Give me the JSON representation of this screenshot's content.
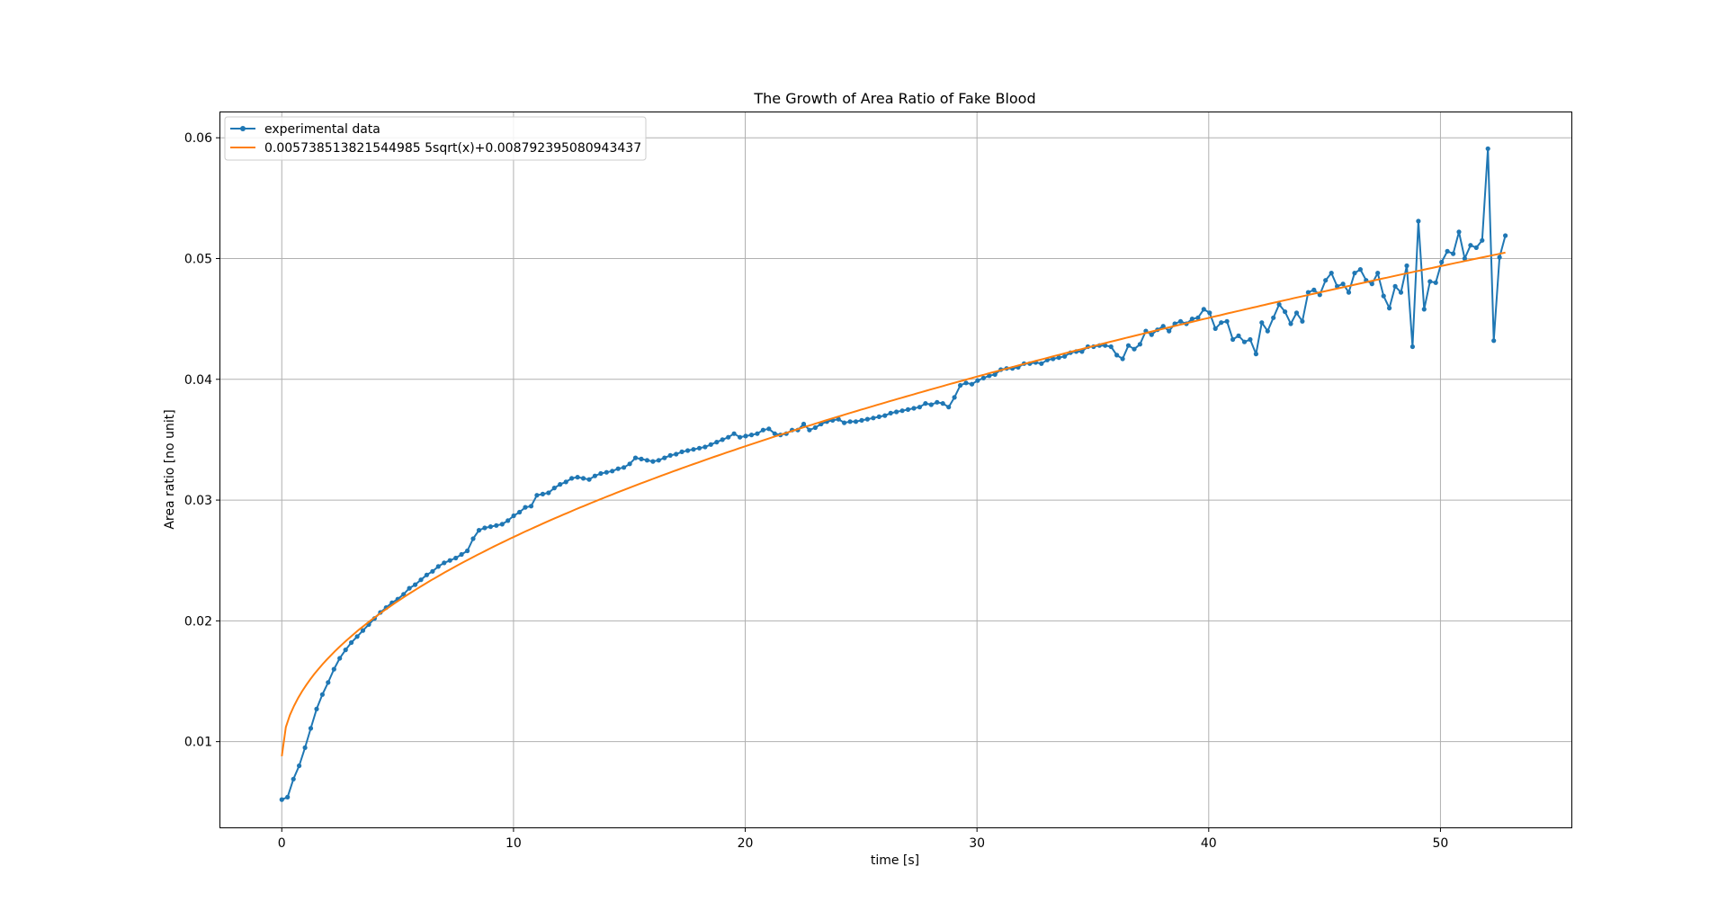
{
  "chart_data": {
    "type": "line",
    "title": "The Growth of Area Ratio of Fake Blood",
    "xlabel": "time [s]",
    "ylabel": "Area ratio [no unit]",
    "xlim": [
      -2.65,
      55.65
    ],
    "ylim": [
      0.0029,
      0.0621
    ],
    "x_ticks": [
      0,
      10,
      20,
      30,
      40,
      50
    ],
    "y_ticks": [
      0.01,
      0.02,
      0.03,
      0.04,
      0.05,
      0.06
    ],
    "x_tick_labels": [
      "0",
      "10",
      "20",
      "30",
      "40",
      "50"
    ],
    "y_tick_labels": [
      "0.01",
      "0.02",
      "0.03",
      "0.04",
      "0.05",
      "0.06"
    ],
    "grid": true,
    "legend_position": "upper-left",
    "series": [
      {
        "name": "experimental data",
        "color": "#1f77b4",
        "marker": "circle",
        "values": [
          0.0052,
          0.0054,
          0.0069,
          0.008,
          0.0095,
          0.0111,
          0.0127,
          0.0139,
          0.0149,
          0.016,
          0.0169,
          0.0176,
          0.0182,
          0.0187,
          0.0192,
          0.0197,
          0.0202,
          0.0207,
          0.0211,
          0.0215,
          0.0218,
          0.0222,
          0.0227,
          0.023,
          0.0234,
          0.0238,
          0.0241,
          0.0245,
          0.0248,
          0.025,
          0.0252,
          0.0255,
          0.0258,
          0.0268,
          0.0275,
          0.0277,
          0.0278,
          0.0279,
          0.028,
          0.0283,
          0.0287,
          0.029,
          0.0294,
          0.0295,
          0.0304,
          0.0305,
          0.0306,
          0.031,
          0.0313,
          0.0315,
          0.0318,
          0.0319,
          0.0318,
          0.0317,
          0.032,
          0.0322,
          0.0323,
          0.0324,
          0.0326,
          0.0327,
          0.033,
          0.0335,
          0.0334,
          0.0333,
          0.0332,
          0.0333,
          0.0335,
          0.0337,
          0.0338,
          0.034,
          0.0341,
          0.0342,
          0.0343,
          0.0344,
          0.0346,
          0.0348,
          0.035,
          0.0352,
          0.0355,
          0.0352,
          0.0353,
          0.0354,
          0.0355,
          0.0358,
          0.0359,
          0.0355,
          0.0354,
          0.0355,
          0.0358,
          0.0358,
          0.0363,
          0.0358,
          0.036,
          0.0363,
          0.0365,
          0.0366,
          0.0367,
          0.0364,
          0.0365,
          0.0365,
          0.0366,
          0.0367,
          0.0368,
          0.0369,
          0.037,
          0.0372,
          0.0373,
          0.0374,
          0.0375,
          0.0376,
          0.0377,
          0.038,
          0.0379,
          0.0381,
          0.038,
          0.0377,
          0.0385,
          0.0395,
          0.0397,
          0.0396,
          0.0399,
          0.0401,
          0.0403,
          0.0404,
          0.0408,
          0.0409,
          0.0409,
          0.041,
          0.0413,
          0.0413,
          0.0414,
          0.0413,
          0.0416,
          0.0417,
          0.0418,
          0.0419,
          0.0422,
          0.0423,
          0.0423,
          0.0427,
          0.0427,
          0.0428,
          0.0428,
          0.0427,
          0.042,
          0.0417,
          0.0428,
          0.0425,
          0.0429,
          0.044,
          0.0437,
          0.0441,
          0.0444,
          0.044,
          0.0446,
          0.0448,
          0.0446,
          0.045,
          0.0451,
          0.0458,
          0.0455,
          0.0442,
          0.0447,
          0.0448,
          0.0433,
          0.0436,
          0.0431,
          0.0433,
          0.0421,
          0.0447,
          0.044,
          0.0451,
          0.0462,
          0.0456,
          0.0446,
          0.0455,
          0.0448,
          0.0472,
          0.0474,
          0.047,
          0.0482,
          0.0488,
          0.0477,
          0.0479,
          0.0472,
          0.0488,
          0.0491,
          0.0482,
          0.0479,
          0.0488,
          0.0469,
          0.0459,
          0.0477,
          0.0472,
          0.0494,
          0.0427,
          0.0531,
          0.0458,
          0.0481,
          0.048,
          0.0497,
          0.0506,
          0.0504,
          0.0522,
          0.05,
          0.0511,
          0.0509,
          0.0515,
          0.0591,
          0.0432,
          0.0501,
          0.0519
        ]
      },
      {
        "name": "0.005738513821544985 5sqrt(x)+0.008792395080943437",
        "color": "#ff7f0e",
        "marker": "none",
        "fit": {
          "a": 0.0057385138215449855,
          "b": 0.008792395080943437
        }
      }
    ]
  }
}
